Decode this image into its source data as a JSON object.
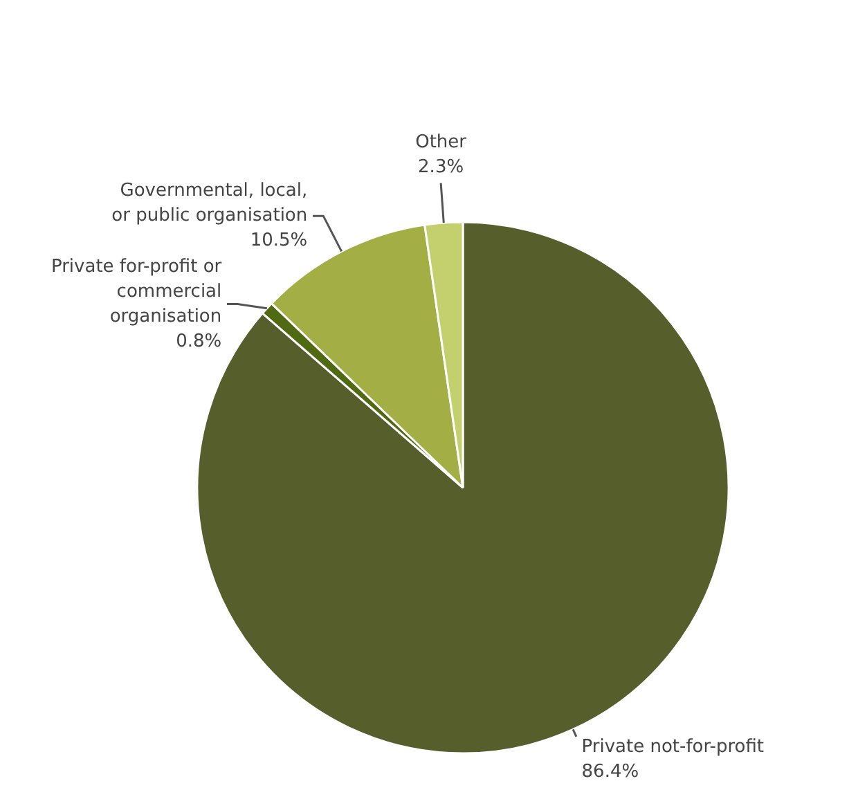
{
  "chart_data": {
    "type": "pie",
    "categories": [
      "Private not-for-profit",
      "Private for-profit or commercial organisation",
      "Governmental, local, or public organisation",
      "Other"
    ],
    "values": [
      86.4,
      0.8,
      10.5,
      2.3
    ],
    "value_labels": [
      "86.4%",
      "0.8%",
      "10.5%",
      "2.3%"
    ],
    "colors": [
      "#565f2b",
      "#4f6a12",
      "#a3af45",
      "#c4d06e"
    ]
  }
}
